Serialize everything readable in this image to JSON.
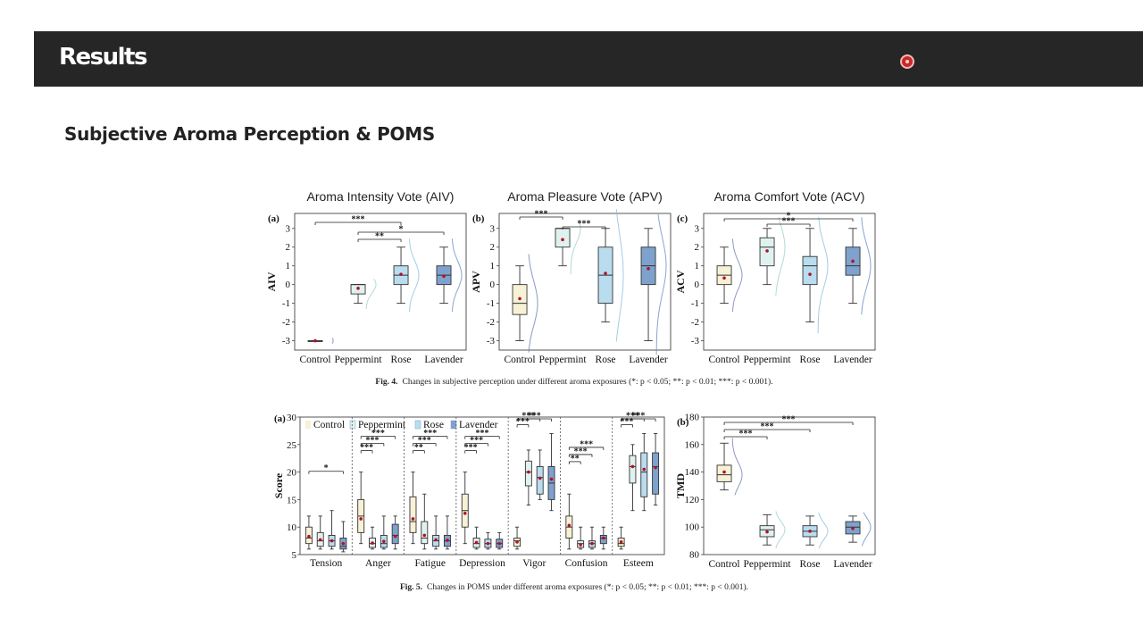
{
  "header": {
    "title": "Results"
  },
  "section": {
    "title": "Subjective Aroma Perception & POMS"
  },
  "fig4": {
    "caption_label": "Fig. 4.",
    "caption_text": "Changes in subjective perception under different aroma exposures (*: p < 0.05; **: p < 0.01; ***: p < 0.001)."
  },
  "fig5": {
    "caption_label": "Fig. 5.",
    "caption_text": "Changes in POMS under different aroma exposures (*: p < 0.05; **: p < 0.01; ***: p < 0.001)."
  },
  "chart_data": [
    {
      "type": "box",
      "panel": "(a)",
      "title": "Aroma Intensity Vote (AIV)",
      "ylabel": "AIV",
      "categories": [
        "Control",
        "Peppermint",
        "Rose",
        "Lavender"
      ],
      "yticks": [
        -3,
        -2,
        -1,
        0,
        1,
        2,
        3
      ],
      "ylim": [
        -3.5,
        3.8
      ],
      "colors": [
        "#f7f1d6",
        "#dff2ef",
        "#b9dcef",
        "#7ea2cd"
      ],
      "boxes": [
        {
          "min": -3,
          "q1": -3,
          "median": -3,
          "q3": -3,
          "max": -3,
          "mean": -3
        },
        {
          "min": -1,
          "q1": -0.5,
          "median": 0,
          "q3": 0,
          "max": 0,
          "mean": -0.2
        },
        {
          "min": -1,
          "q1": 0,
          "median": 0.5,
          "q3": 1,
          "max": 2,
          "mean": 0.55
        },
        {
          "min": -1,
          "q1": 0,
          "median": 0.5,
          "q3": 1,
          "max": 2,
          "mean": 0.45
        }
      ],
      "significance": [
        {
          "from": 0,
          "to": 2,
          "label": "***"
        },
        {
          "from": 1,
          "to": 3,
          "label": "*"
        },
        {
          "from": 1,
          "to": 2,
          "label": "**"
        }
      ]
    },
    {
      "type": "box",
      "panel": "(b)",
      "title": "Aroma Pleasure Vote (APV)",
      "ylabel": "APV",
      "categories": [
        "Control",
        "Peppermint",
        "Rose",
        "Lavender"
      ],
      "yticks": [
        -3,
        -2,
        -1,
        0,
        1,
        2,
        3
      ],
      "ylim": [
        -3.5,
        3.8
      ],
      "colors": [
        "#f7f1d6",
        "#dff2ef",
        "#b9dcef",
        "#7ea2cd"
      ],
      "boxes": [
        {
          "min": -3,
          "q1": -1.6,
          "median": -1,
          "q3": 0,
          "max": 1,
          "mean": -0.75
        },
        {
          "min": 1,
          "q1": 2,
          "median": 3,
          "q3": 3,
          "max": 3,
          "mean": 2.4
        },
        {
          "min": -2,
          "q1": -1,
          "median": 0.5,
          "q3": 2,
          "max": 3,
          "mean": 0.6
        },
        {
          "min": -3,
          "q1": 0,
          "median": 1,
          "q3": 2,
          "max": 3,
          "mean": 0.85
        }
      ],
      "significance": [
        {
          "from": 0,
          "to": 1,
          "label": "***"
        },
        {
          "from": 1,
          "to": 2,
          "label": "***"
        }
      ]
    },
    {
      "type": "box",
      "panel": "(c)",
      "title": "Aroma Comfort Vote (ACV)",
      "ylabel": "ACV",
      "categories": [
        "Control",
        "Peppermint",
        "Rose",
        "Lavender"
      ],
      "yticks": [
        -3,
        -2,
        -1,
        0,
        1,
        2,
        3
      ],
      "ylim": [
        -3.5,
        3.8
      ],
      "colors": [
        "#f7f1d6",
        "#dff2ef",
        "#b9dcef",
        "#7ea2cd"
      ],
      "boxes": [
        {
          "min": -1,
          "q1": 0,
          "median": 0.5,
          "q3": 1,
          "max": 2,
          "mean": 0.35
        },
        {
          "min": 0,
          "q1": 1,
          "median": 2,
          "q3": 2.5,
          "max": 3,
          "mean": 1.8
        },
        {
          "min": -2,
          "q1": 0,
          "median": 1,
          "q3": 1.5,
          "max": 3,
          "mean": 0.55
        },
        {
          "min": -1,
          "q1": 0.5,
          "median": 1,
          "q3": 2,
          "max": 3,
          "mean": 1.25
        }
      ],
      "significance": [
        {
          "from": 0,
          "to": 3,
          "label": "*"
        },
        {
          "from": 1,
          "to": 2,
          "label": "***"
        }
      ]
    },
    {
      "type": "grouped-box",
      "panel": "(a)",
      "ylabel": "Score",
      "yticks": [
        5,
        10,
        15,
        20,
        25,
        30
      ],
      "ylim": [
        5,
        30
      ],
      "legend": [
        "Control",
        "Peppermint",
        "Rose",
        "Lavender"
      ],
      "legend_placement": "top",
      "colors": [
        "#f7f1d6",
        "#dff2ef",
        "#b9dcef",
        "#7ea2cd"
      ],
      "categories": [
        "Tension",
        "Anger",
        "Fatigue",
        "Depression",
        "Vigor",
        "Confusion",
        "Esteem"
      ],
      "groups": [
        {
          "boxes": [
            {
              "min": 6,
              "q1": 7,
              "median": 8,
              "q3": 10,
              "max": 12,
              "mean": 8.3
            },
            {
              "min": 6,
              "q1": 6.5,
              "median": 7.5,
              "q3": 9,
              "max": 12,
              "mean": 7.7
            },
            {
              "min": 6,
              "q1": 6.5,
              "median": 7.5,
              "q3": 8.5,
              "max": 13,
              "mean": 7.5
            },
            {
              "min": 5.5,
              "q1": 6,
              "median": 6.5,
              "q3": 8,
              "max": 11,
              "mean": 7
            }
          ],
          "significance": [
            {
              "from": 0,
              "to": 3,
              "label": "*"
            }
          ]
        },
        {
          "boxes": [
            {
              "min": 7,
              "q1": 9,
              "median": 12,
              "q3": 15,
              "max": 20,
              "mean": 11.5
            },
            {
              "min": 6,
              "q1": 6.3,
              "median": 7,
              "q3": 8,
              "max": 10,
              "mean": 7.1
            },
            {
              "min": 6,
              "q1": 6.3,
              "median": 7,
              "q3": 8.5,
              "max": 12,
              "mean": 7.4
            },
            {
              "min": 6,
              "q1": 7,
              "median": 8.5,
              "q3": 10.5,
              "max": 12,
              "mean": 8.3
            }
          ],
          "significance": [
            {
              "from": 0,
              "to": 1,
              "label": "***"
            },
            {
              "from": 0,
              "to": 2,
              "label": "***"
            },
            {
              "from": 0,
              "to": 3,
              "label": "***"
            }
          ]
        },
        {
          "boxes": [
            {
              "min": 7,
              "q1": 9,
              "median": 11,
              "q3": 15.5,
              "max": 20,
              "mean": 11.5
            },
            {
              "min": 6,
              "q1": 7,
              "median": 8,
              "q3": 11,
              "max": 16,
              "mean": 8.5
            },
            {
              "min": 6,
              "q1": 6.5,
              "median": 7.5,
              "q3": 8.5,
              "max": 12,
              "mean": 7.7
            },
            {
              "min": 6,
              "q1": 6.5,
              "median": 7.5,
              "q3": 8.5,
              "max": 12,
              "mean": 7.6
            }
          ],
          "significance": [
            {
              "from": 0,
              "to": 1,
              "label": "**"
            },
            {
              "from": 0,
              "to": 2,
              "label": "***"
            },
            {
              "from": 0,
              "to": 3,
              "label": "***"
            }
          ]
        },
        {
          "boxes": [
            {
              "min": 7,
              "q1": 10,
              "median": 13,
              "q3": 16,
              "max": 20,
              "mean": 12.5
            },
            {
              "min": 6,
              "q1": 6.3,
              "median": 7,
              "q3": 8,
              "max": 10,
              "mean": 7.2
            },
            {
              "min": 6,
              "q1": 6.3,
              "median": 7,
              "q3": 7.8,
              "max": 9,
              "mean": 7
            },
            {
              "min": 6,
              "q1": 6.3,
              "median": 7,
              "q3": 7.8,
              "max": 9,
              "mean": 7
            }
          ],
          "significance": [
            {
              "from": 0,
              "to": 1,
              "label": "***"
            },
            {
              "from": 0,
              "to": 2,
              "label": "***"
            },
            {
              "from": 0,
              "to": 3,
              "label": "***"
            }
          ]
        },
        {
          "boxes": [
            {
              "min": 6,
              "q1": 6.5,
              "median": 7.5,
              "q3": 8,
              "max": 10,
              "mean": 7.3
            },
            {
              "min": 14,
              "q1": 17.5,
              "median": 20,
              "q3": 22,
              "max": 24,
              "mean": 20
            },
            {
              "min": 15,
              "q1": 16,
              "median": 19,
              "q3": 21,
              "max": 24,
              "mean": 18.9
            },
            {
              "min": 13,
              "q1": 15,
              "median": 18,
              "q3": 21,
              "max": 27,
              "mean": 18.7
            }
          ],
          "significance": [
            {
              "from": 0,
              "to": 1,
              "label": "***"
            },
            {
              "from": 0,
              "to": 2,
              "label": "***"
            },
            {
              "from": 0,
              "to": 3,
              "label": "***"
            }
          ]
        },
        {
          "boxes": [
            {
              "min": 6,
              "q1": 8,
              "median": 10,
              "q3": 12,
              "max": 16,
              "mean": 10.3
            },
            {
              "min": 6,
              "q1": 6.3,
              "median": 7,
              "q3": 7.5,
              "max": 10,
              "mean": 6.8
            },
            {
              "min": 6,
              "q1": 6.3,
              "median": 7,
              "q3": 7.5,
              "max": 10,
              "mean": 7
            },
            {
              "min": 6,
              "q1": 7,
              "median": 8,
              "q3": 8.5,
              "max": 10,
              "mean": 8
            }
          ],
          "significance": [
            {
              "from": 0,
              "to": 1,
              "label": "**"
            },
            {
              "from": 0,
              "to": 2,
              "label": "***"
            },
            {
              "from": 0,
              "to": 3,
              "label": "***"
            }
          ]
        },
        {
          "boxes": [
            {
              "min": 6,
              "q1": 6.5,
              "median": 7,
              "q3": 8,
              "max": 10,
              "mean": 7.3
            },
            {
              "min": 13,
              "q1": 18,
              "median": 21,
              "q3": 23,
              "max": 25,
              "mean": 21
            },
            {
              "min": 13,
              "q1": 15.5,
              "median": 20,
              "q3": 23.5,
              "max": 27,
              "mean": 20.5
            },
            {
              "min": 14,
              "q1": 16,
              "median": 21,
              "q3": 23.5,
              "max": 27,
              "mean": 20.8
            }
          ],
          "significance": [
            {
              "from": 0,
              "to": 1,
              "label": "***"
            },
            {
              "from": 0,
              "to": 2,
              "label": "***"
            },
            {
              "from": 0,
              "to": 3,
              "label": "***"
            }
          ]
        }
      ]
    },
    {
      "type": "box",
      "panel": "(b)",
      "ylabel": "TMD",
      "categories": [
        "Control",
        "Peppermint",
        "Rose",
        "Lavender"
      ],
      "yticks": [
        80,
        100,
        120,
        140,
        160,
        180
      ],
      "ylim": [
        80,
        180
      ],
      "colors": [
        "#f7f1d6",
        "#dff2ef",
        "#b9dcef",
        "#7ea2cd"
      ],
      "boxes": [
        {
          "min": 127,
          "q1": 133,
          "median": 138,
          "q3": 145,
          "max": 161,
          "mean": 140
        },
        {
          "min": 87,
          "q1": 93,
          "median": 98,
          "q3": 101,
          "max": 109,
          "mean": 96.5
        },
        {
          "min": 87,
          "q1": 93,
          "median": 97,
          "q3": 101,
          "max": 108,
          "mean": 97
        },
        {
          "min": 89,
          "q1": 95,
          "median": 100,
          "q3": 104,
          "max": 108,
          "mean": 99
        }
      ],
      "significance": [
        {
          "from": 0,
          "to": 1,
          "label": "***"
        },
        {
          "from": 0,
          "to": 2,
          "label": "***"
        },
        {
          "from": 0,
          "to": 3,
          "label": "***"
        }
      ]
    }
  ]
}
